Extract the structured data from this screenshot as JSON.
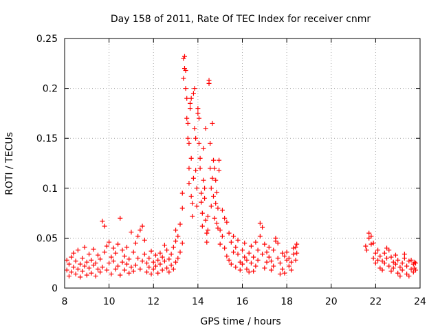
{
  "chart_data": {
    "type": "scatter",
    "title": "Day 158 of 2011, Rate Of TEC Index for receiver cnmr",
    "xlabel": "GPS time / hours",
    "ylabel": "ROTI / TECUs",
    "xlim": [
      8,
      24
    ],
    "ylim": [
      0,
      0.25
    ],
    "x_ticks": [
      8,
      10,
      12,
      14,
      16,
      18,
      20,
      22,
      24
    ],
    "x_tick_labels": [
      "8",
      "10",
      "12",
      "14",
      "16",
      "18",
      "20",
      "22",
      "24"
    ],
    "y_ticks": [
      0,
      0.05,
      0.1,
      0.15,
      0.2,
      0.25
    ],
    "y_tick_labels": [
      "0",
      "0.05",
      "0.1",
      "0.15",
      "0.2",
      "0.25"
    ],
    "grid": true,
    "marker": "plus",
    "series": [
      {
        "name": "ROTI",
        "color": "#ff0000",
        "points": [
          [
            8.1,
            0.018
          ],
          [
            8.1,
            0.028
          ],
          [
            8.2,
            0.012
          ],
          [
            8.2,
            0.024
          ],
          [
            8.3,
            0.031
          ],
          [
            8.3,
            0.016
          ],
          [
            8.4,
            0.021
          ],
          [
            8.4,
            0.035
          ],
          [
            8.5,
            0.014
          ],
          [
            8.5,
            0.027
          ],
          [
            8.6,
            0.019
          ],
          [
            8.6,
            0.038
          ],
          [
            8.7,
            0.011
          ],
          [
            8.7,
            0.024
          ],
          [
            8.8,
            0.03
          ],
          [
            8.8,
            0.017
          ],
          [
            8.9,
            0.022
          ],
          [
            8.9,
            0.041
          ],
          [
            9.0,
            0.013
          ],
          [
            9.0,
            0.026
          ],
          [
            9.1,
            0.02
          ],
          [
            9.1,
            0.034
          ],
          [
            9.2,
            0.015
          ],
          [
            9.2,
            0.028
          ],
          [
            9.3,
            0.023
          ],
          [
            9.3,
            0.039
          ],
          [
            9.4,
            0.012
          ],
          [
            9.4,
            0.025
          ],
          [
            9.5,
            0.019
          ],
          [
            9.5,
            0.033
          ],
          [
            9.6,
            0.016
          ],
          [
            9.6,
            0.029
          ],
          [
            9.7,
            0.067
          ],
          [
            9.7,
            0.021
          ],
          [
            9.8,
            0.062
          ],
          [
            9.8,
            0.036
          ],
          [
            9.9,
            0.042
          ],
          [
            9.9,
            0.018
          ],
          [
            10.0,
            0.046
          ],
          [
            10.0,
            0.025
          ],
          [
            10.1,
            0.014
          ],
          [
            10.1,
            0.031
          ],
          [
            10.2,
            0.027
          ],
          [
            10.2,
            0.04
          ],
          [
            10.3,
            0.019
          ],
          [
            10.3,
            0.035
          ],
          [
            10.4,
            0.022
          ],
          [
            10.4,
            0.044
          ],
          [
            10.5,
            0.013
          ],
          [
            10.5,
            0.07
          ],
          [
            10.6,
            0.026
          ],
          [
            10.6,
            0.038
          ],
          [
            10.7,
            0.018
          ],
          [
            10.7,
            0.032
          ],
          [
            10.8,
            0.024
          ],
          [
            10.8,
            0.041
          ],
          [
            10.9,
            0.015
          ],
          [
            10.9,
            0.029
          ],
          [
            11.0,
            0.056
          ],
          [
            11.0,
            0.021
          ],
          [
            11.1,
            0.036
          ],
          [
            11.1,
            0.017
          ],
          [
            11.2,
            0.045
          ],
          [
            11.2,
            0.023
          ],
          [
            11.3,
            0.052
          ],
          [
            11.3,
            0.03
          ],
          [
            11.4,
            0.019
          ],
          [
            11.4,
            0.058
          ],
          [
            11.5,
            0.062
          ],
          [
            11.5,
            0.027
          ],
          [
            11.6,
            0.048
          ],
          [
            11.6,
            0.034
          ],
          [
            11.7,
            0.016
          ],
          [
            11.7,
            0.025
          ],
          [
            11.8,
            0.03
          ],
          [
            11.8,
            0.021
          ],
          [
            11.9,
            0.037
          ],
          [
            11.9,
            0.014
          ],
          [
            12.0,
            0.026
          ],
          [
            12.0,
            0.019
          ],
          [
            12.1,
            0.033
          ],
          [
            12.1,
            0.022
          ],
          [
            12.2,
            0.028
          ],
          [
            12.2,
            0.015
          ],
          [
            12.3,
            0.035
          ],
          [
            12.3,
            0.024
          ],
          [
            12.4,
            0.018
          ],
          [
            12.4,
            0.031
          ],
          [
            12.5,
            0.027
          ],
          [
            12.5,
            0.043
          ],
          [
            12.6,
            0.02
          ],
          [
            12.6,
            0.038
          ],
          [
            12.7,
            0.029
          ],
          [
            12.7,
            0.016
          ],
          [
            12.8,
            0.034
          ],
          [
            12.8,
            0.023
          ],
          [
            12.9,
            0.041
          ],
          [
            12.9,
            0.019
          ],
          [
            13.0,
            0.047
          ],
          [
            13.0,
            0.026
          ],
          [
            13.0,
            0.058
          ],
          [
            13.1,
            0.03
          ],
          [
            13.1,
            0.052
          ],
          [
            13.2,
            0.036
          ],
          [
            13.2,
            0.064
          ],
          [
            13.3,
            0.045
          ],
          [
            13.3,
            0.08
          ],
          [
            13.3,
            0.095
          ],
          [
            13.35,
            0.21
          ],
          [
            13.35,
            0.23
          ],
          [
            13.4,
            0.232
          ],
          [
            13.4,
            0.22
          ],
          [
            13.45,
            0.218
          ],
          [
            13.45,
            0.2
          ],
          [
            13.5,
            0.19
          ],
          [
            13.5,
            0.17
          ],
          [
            13.55,
            0.165
          ],
          [
            13.55,
            0.15
          ],
          [
            13.6,
            0.145
          ],
          [
            13.6,
            0.12
          ],
          [
            13.6,
            0.105
          ],
          [
            13.65,
            0.185
          ],
          [
            13.65,
            0.18
          ],
          [
            13.7,
            0.19
          ],
          [
            13.7,
            0.13
          ],
          [
            13.7,
            0.092
          ],
          [
            13.75,
            0.072
          ],
          [
            13.75,
            0.085
          ],
          [
            13.8,
            0.11
          ],
          [
            13.8,
            0.195
          ],
          [
            13.85,
            0.2
          ],
          [
            13.85,
            0.16
          ],
          [
            13.9,
            0.15
          ],
          [
            13.9,
            0.118
          ],
          [
            13.95,
            0.1
          ],
          [
            13.95,
            0.082
          ],
          [
            14.0,
            0.18
          ],
          [
            14.0,
            0.175
          ],
          [
            14.05,
            0.17
          ],
          [
            14.05,
            0.145
          ],
          [
            14.1,
            0.13
          ],
          [
            14.1,
            0.12
          ],
          [
            14.15,
            0.095
          ],
          [
            14.15,
            0.086
          ],
          [
            14.2,
            0.075
          ],
          [
            14.2,
            0.062
          ],
          [
            14.25,
            0.14
          ],
          [
            14.25,
            0.108
          ],
          [
            14.3,
            0.1
          ],
          [
            14.3,
            0.09
          ],
          [
            14.35,
            0.16
          ],
          [
            14.35,
            0.068
          ],
          [
            14.4,
            0.055
          ],
          [
            14.4,
            0.046
          ],
          [
            14.45,
            0.072
          ],
          [
            14.45,
            0.058
          ],
          [
            14.5,
            0.205
          ],
          [
            14.5,
            0.208
          ],
          [
            14.55,
            0.145
          ],
          [
            14.55,
            0.12
          ],
          [
            14.6,
            0.1
          ],
          [
            14.6,
            0.082
          ],
          [
            14.65,
            0.11
          ],
          [
            14.65,
            0.165
          ],
          [
            14.7,
            0.128
          ],
          [
            14.7,
            0.092
          ],
          [
            14.75,
            0.07
          ],
          [
            14.75,
            0.12
          ],
          [
            14.8,
            0.108
          ],
          [
            14.8,
            0.085
          ],
          [
            14.85,
            0.096
          ],
          [
            14.85,
            0.065
          ],
          [
            14.9,
            0.08
          ],
          [
            14.9,
            0.06
          ],
          [
            14.95,
            0.128
          ],
          [
            14.95,
            0.118
          ],
          [
            15.0,
            0.058
          ],
          [
            15.0,
            0.044
          ],
          [
            15.1,
            0.078
          ],
          [
            15.1,
            0.052
          ],
          [
            15.2,
            0.07
          ],
          [
            15.2,
            0.04
          ],
          [
            15.3,
            0.066
          ],
          [
            15.3,
            0.032
          ],
          [
            15.4,
            0.055
          ],
          [
            15.4,
            0.028
          ],
          [
            15.5,
            0.046
          ],
          [
            15.5,
            0.024
          ],
          [
            15.6,
            0.052
          ],
          [
            15.6,
            0.036
          ],
          [
            15.7,
            0.041
          ],
          [
            15.7,
            0.021
          ],
          [
            15.8,
            0.034
          ],
          [
            15.8,
            0.048
          ],
          [
            15.9,
            0.026
          ],
          [
            15.9,
            0.018
          ],
          [
            16.0,
            0.038
          ],
          [
            16.0,
            0.024
          ],
          [
            16.1,
            0.031
          ],
          [
            16.1,
            0.045
          ],
          [
            16.2,
            0.019
          ],
          [
            16.2,
            0.028
          ],
          [
            16.3,
            0.035
          ],
          [
            16.3,
            0.016
          ],
          [
            16.4,
            0.042
          ],
          [
            16.4,
            0.025
          ],
          [
            16.5,
            0.031
          ],
          [
            16.5,
            0.017
          ],
          [
            16.6,
            0.046
          ],
          [
            16.6,
            0.022
          ],
          [
            16.7,
            0.038
          ],
          [
            16.7,
            0.028
          ],
          [
            16.8,
            0.065
          ],
          [
            16.8,
            0.052
          ],
          [
            16.9,
            0.061
          ],
          [
            16.9,
            0.034
          ],
          [
            17.0,
            0.044
          ],
          [
            17.0,
            0.02
          ],
          [
            17.1,
            0.036
          ],
          [
            17.1,
            0.026
          ],
          [
            17.2,
            0.041
          ],
          [
            17.2,
            0.031
          ],
          [
            17.3,
            0.018
          ],
          [
            17.3,
            0.027
          ],
          [
            17.4,
            0.038
          ],
          [
            17.4,
            0.022
          ],
          [
            17.5,
            0.047
          ],
          [
            17.5,
            0.05
          ],
          [
            17.6,
            0.03
          ],
          [
            17.6,
            0.045
          ],
          [
            17.7,
            0.014
          ],
          [
            17.7,
            0.025
          ],
          [
            17.8,
            0.035
          ],
          [
            17.8,
            0.019
          ],
          [
            17.9,
            0.032
          ],
          [
            17.9,
            0.015
          ],
          [
            18.0,
            0.028
          ],
          [
            18.0,
            0.036
          ],
          [
            18.1,
            0.022
          ],
          [
            18.1,
            0.03
          ],
          [
            18.2,
            0.018
          ],
          [
            18.2,
            0.026
          ],
          [
            18.3,
            0.034
          ],
          [
            18.3,
            0.04
          ],
          [
            18.4,
            0.041
          ],
          [
            18.4,
            0.028
          ],
          [
            18.45,
            0.044
          ],
          [
            18.45,
            0.035
          ],
          [
            21.55,
            0.042
          ],
          [
            21.6,
            0.038
          ],
          [
            21.7,
            0.055
          ],
          [
            21.7,
            0.05
          ],
          [
            21.8,
            0.044
          ],
          [
            21.8,
            0.052
          ],
          [
            21.9,
            0.03
          ],
          [
            21.9,
            0.045
          ],
          [
            22.0,
            0.035
          ],
          [
            22.0,
            0.025
          ],
          [
            22.1,
            0.038
          ],
          [
            22.1,
            0.028
          ],
          [
            22.2,
            0.02
          ],
          [
            22.2,
            0.032
          ],
          [
            22.3,
            0.027
          ],
          [
            22.3,
            0.018
          ],
          [
            22.4,
            0.035
          ],
          [
            22.4,
            0.025
          ],
          [
            22.5,
            0.04
          ],
          [
            22.5,
            0.03
          ],
          [
            22.6,
            0.022
          ],
          [
            22.6,
            0.038
          ],
          [
            22.7,
            0.031
          ],
          [
            22.7,
            0.017
          ],
          [
            22.8,
            0.026
          ],
          [
            22.8,
            0.02
          ],
          [
            22.9,
            0.033
          ],
          [
            22.9,
            0.024
          ],
          [
            23.0,
            0.015
          ],
          [
            23.0,
            0.028
          ],
          [
            23.1,
            0.021
          ],
          [
            23.1,
            0.012
          ],
          [
            23.2,
            0.025
          ],
          [
            23.2,
            0.018
          ],
          [
            23.3,
            0.034
          ],
          [
            23.3,
            0.03
          ],
          [
            23.4,
            0.014
          ],
          [
            23.4,
            0.022
          ],
          [
            23.5,
            0.027
          ],
          [
            23.5,
            0.012
          ],
          [
            23.6,
            0.019
          ],
          [
            23.6,
            0.028
          ],
          [
            23.7,
            0.024
          ],
          [
            23.7,
            0.016
          ],
          [
            23.75,
            0.02
          ],
          [
            23.75,
            0.026
          ],
          [
            23.8,
            0.018
          ],
          [
            23.8,
            0.025
          ]
        ]
      }
    ]
  }
}
